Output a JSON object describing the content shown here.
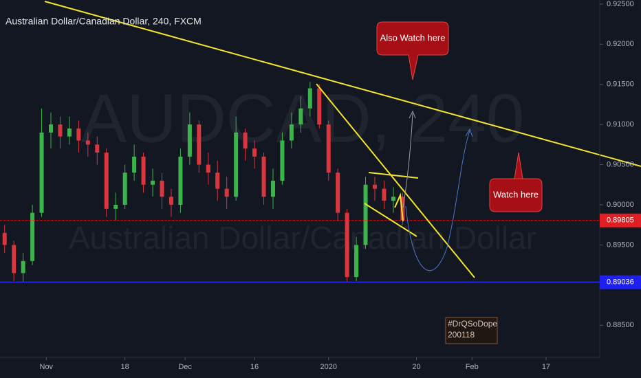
{
  "chart_data": {
    "type": "candlestick",
    "title": "Australian Dollar/Canadian Dollar, 240, FXCM",
    "watermark": "AUDCAD, 240",
    "watermark_subtitle": "Australian Dollar/Canadian Dollar",
    "annotations": [
      "Also Watch here",
      "Watch here"
    ],
    "signature": [
      "#DrQSoDope",
      "200118"
    ],
    "up_color": "#3bb54a",
    "down_color": "#d9363e",
    "x": [
      -9,
      -7,
      -5,
      -3,
      -1,
      1,
      3,
      5,
      7,
      9,
      11,
      13,
      15,
      17,
      19,
      21,
      23,
      25,
      27,
      29,
      31,
      33,
      35,
      37,
      39,
      41,
      43,
      45,
      47,
      49,
      51,
      53,
      55,
      57,
      59,
      61,
      63,
      65,
      67,
      69,
      71,
      73,
      75,
      77
    ],
    "open": [
      0.8965,
      0.895,
      0.8915,
      0.893,
      0.899,
      0.909,
      0.91,
      0.9085,
      0.9095,
      0.908,
      0.9075,
      0.9065,
      0.8995,
      0.9,
      0.904,
      0.906,
      0.9025,
      0.903,
      0.901,
      0.9,
      0.906,
      0.91,
      0.905,
      0.904,
      0.902,
      0.901,
      0.909,
      0.907,
      0.906,
      0.901,
      0.903,
      0.908,
      0.91,
      0.912,
      0.9145,
      0.91,
      0.904,
      0.899,
      0.891,
      0.895,
      0.9025,
      0.902,
      0.9005,
      0.901
    ],
    "high": [
      0.8975,
      0.8955,
      0.894,
      0.9,
      0.912,
      0.9115,
      0.911,
      0.911,
      0.9105,
      0.909,
      0.9085,
      0.907,
      0.9015,
      0.905,
      0.9075,
      0.9065,
      0.9045,
      0.904,
      0.902,
      0.907,
      0.9115,
      0.9105,
      0.9065,
      0.9055,
      0.9035,
      0.911,
      0.9095,
      0.908,
      0.9065,
      0.9045,
      0.909,
      0.9115,
      0.9135,
      0.9153,
      0.915,
      0.9105,
      0.9045,
      0.8995,
      0.896,
      0.9035,
      0.9035,
      0.903,
      0.9022,
      0.9015
    ],
    "low": [
      0.894,
      0.8905,
      0.8903,
      0.8925,
      0.8985,
      0.907,
      0.907,
      0.9075,
      0.9065,
      0.906,
      0.905,
      0.8985,
      0.898,
      0.8995,
      0.903,
      0.9015,
      0.901,
      0.8995,
      0.8985,
      0.899,
      0.905,
      0.904,
      0.9025,
      0.9005,
      0.8995,
      0.9005,
      0.9055,
      0.9045,
      0.9,
      0.8995,
      0.9025,
      0.907,
      0.909,
      0.911,
      0.9095,
      0.903,
      0.898,
      0.8903,
      0.8905,
      0.8945,
      0.9005,
      0.8995,
      0.899,
      0.8975
    ],
    "close": [
      0.895,
      0.8915,
      0.893,
      0.899,
      0.909,
      0.91,
      0.9085,
      0.9095,
      0.908,
      0.9075,
      0.9065,
      0.8995,
      0.9,
      0.904,
      0.906,
      0.9025,
      0.903,
      0.901,
      0.9,
      0.906,
      0.91,
      0.905,
      0.904,
      0.902,
      0.901,
      0.909,
      0.907,
      0.906,
      0.901,
      0.903,
      0.908,
      0.91,
      0.912,
      0.9145,
      0.91,
      0.904,
      0.899,
      0.891,
      0.895,
      0.9025,
      0.902,
      0.9005,
      0.901,
      0.8981
    ],
    "xlim": [
      -10,
      119.6
    ],
    "xticks": [
      {
        "value": 0,
        "label": "Nov"
      },
      {
        "value": 17,
        "label": "18"
      },
      {
        "value": 30,
        "label": "Dec"
      },
      {
        "value": 45,
        "label": "16"
      },
      {
        "value": 61,
        "label": "2020"
      },
      {
        "value": 80,
        "label": "20"
      },
      {
        "value": 92,
        "label": "Feb"
      },
      {
        "value": 108,
        "label": "17"
      }
    ],
    "ylim": [
      0.881,
      0.9255
    ],
    "yticks": [
      {
        "value": 0.925,
        "label": "0.92500"
      },
      {
        "value": 0.92,
        "label": "0.92000"
      },
      {
        "value": 0.915,
        "label": "0.91500"
      },
      {
        "value": 0.91,
        "label": "0.91000"
      },
      {
        "value": 0.905,
        "label": "0.90500"
      },
      {
        "value": 0.9,
        "label": "0.90000"
      },
      {
        "value": 0.895,
        "label": "0.89500"
      },
      {
        "value": 0.885,
        "label": "0.88500"
      }
    ],
    "price_lines": [
      {
        "value": 0.89805,
        "color": "#e01e24",
        "dashed": true
      },
      {
        "value": 0.89036,
        "color": "#1f1ff0",
        "dashed": false
      }
    ]
  }
}
